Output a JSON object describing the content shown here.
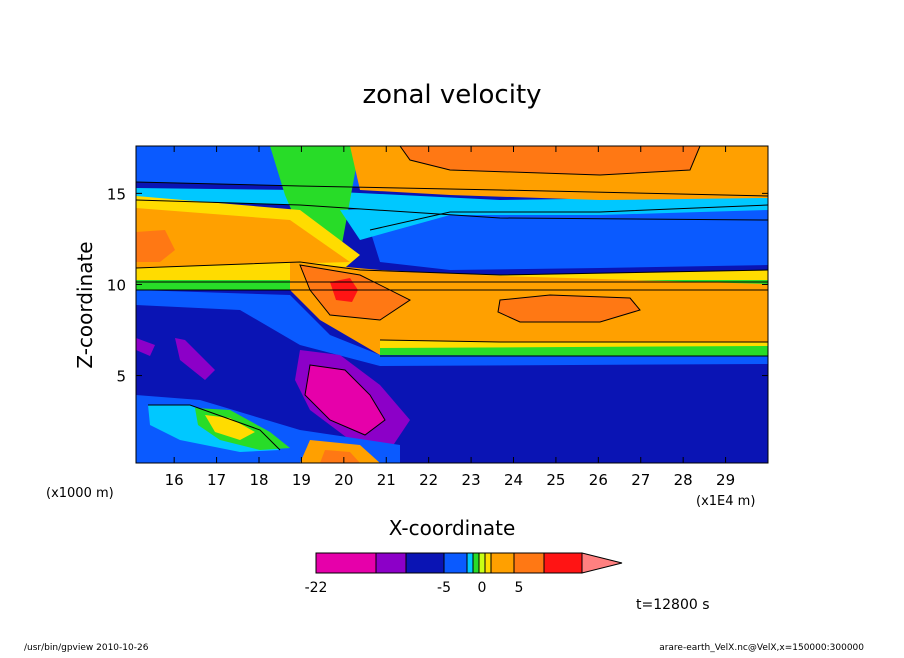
{
  "chart_data": {
    "type": "heatmap",
    "title": "zonal velocity",
    "xlabel": "X-coordinate",
    "ylabel": "Z-coordinate",
    "x_unit": "(x1E4 m)",
    "y_unit": "(x1000 m)",
    "x_ticks": [
      "16",
      "17",
      "18",
      "19",
      "20",
      "21",
      "22",
      "23",
      "24",
      "25",
      "26",
      "27",
      "28",
      "29"
    ],
    "y_ticks": [
      "5",
      "10",
      "15"
    ],
    "xlim": [
      15.1,
      30.0
    ],
    "ylim": [
      0.2,
      17.6
    ],
    "time_label": "t=12800 s",
    "colorbar": {
      "tick_labels": [
        "-22",
        "-5",
        "0",
        "5"
      ],
      "tick_values": [
        -22,
        -5,
        0,
        5
      ],
      "colors": [
        "#e600aa",
        "#8c00c8",
        "#0a14b4",
        "#0a5aff",
        "#00c8ff",
        "#28dc28",
        "#c8ff14",
        "#ffdc00",
        "#ffa000",
        "#ff7814",
        "#ff1414",
        "#ff8080"
      ]
    },
    "fields": {
      "background_velocity": "strong negative (deep blue)",
      "jet_core": {
        "x": 20.0,
        "z": 10.0
      },
      "minimum_region": {
        "x": 20.0,
        "z": 4.5
      }
    },
    "footer_left": "/usr/bin/gpview   2010-10-26",
    "footer_right": "arare-earth_VelX.nc@VelX,x=150000:300000"
  }
}
